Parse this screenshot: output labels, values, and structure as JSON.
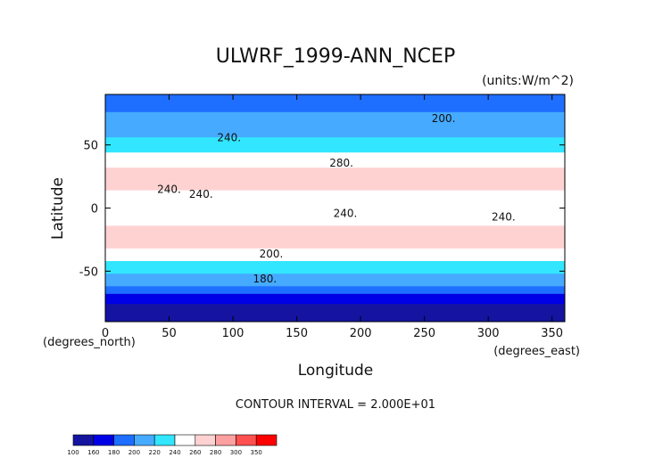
{
  "chart_data": {
    "type": "heatmap",
    "title": "ULWRF_1999-ANN_NCEP",
    "units_label": "(units:W/m^2)",
    "xlabel": "Longitude",
    "ylabel": "Latitude",
    "x_unit_label": "(degrees_east)",
    "y_unit_label": "(degrees_north)",
    "xlim": [
      0,
      360
    ],
    "ylim": [
      -90,
      90
    ],
    "x_ticks": [
      0,
      50,
      100,
      150,
      200,
      250,
      300,
      350
    ],
    "y_ticks": [
      -50,
      0,
      50
    ],
    "contour_interval_text": "CONTOUR INTERVAL = 2.000E+01",
    "contour_labels": [
      "200.",
      "240.",
      "280.",
      "240.",
      "240.",
      "240.",
      "240.",
      "200.",
      "180."
    ],
    "colorbar": {
      "levels": [
        100,
        160,
        180,
        200,
        220,
        240,
        260,
        280,
        300,
        350
      ],
      "colors": [
        "#1414a0",
        "#0000e6",
        "#1e6eff",
        "#46aaff",
        "#32e6ff",
        "#ffffff",
        "#ffd2d2",
        "#ffa0a0",
        "#ff5050",
        "#ff0000"
      ],
      "tick_labels": [
        "100",
        "160",
        "180",
        "200",
        "220",
        "240",
        "260",
        "280",
        "300",
        "350"
      ]
    },
    "zonal_profile": [
      {
        "lat": 90,
        "value": 185
      },
      {
        "lat": 75,
        "value": 200
      },
      {
        "lat": 60,
        "value": 215
      },
      {
        "lat": 50,
        "value": 230
      },
      {
        "lat": 40,
        "value": 245
      },
      {
        "lat": 30,
        "value": 265
      },
      {
        "lat": 20,
        "value": 270
      },
      {
        "lat": 10,
        "value": 255
      },
      {
        "lat": 0,
        "value": 245
      },
      {
        "lat": -10,
        "value": 255
      },
      {
        "lat": -20,
        "value": 270
      },
      {
        "lat": -30,
        "value": 265
      },
      {
        "lat": -40,
        "value": 245
      },
      {
        "lat": -50,
        "value": 225
      },
      {
        "lat": -60,
        "value": 205
      },
      {
        "lat": -70,
        "value": 175
      },
      {
        "lat": -80,
        "value": 150
      },
      {
        "lat": -90,
        "value": 130
      }
    ]
  }
}
